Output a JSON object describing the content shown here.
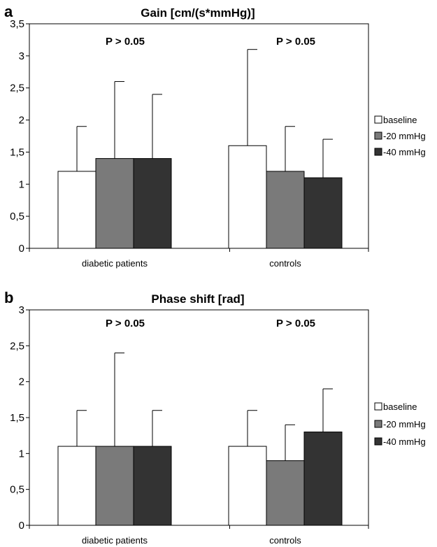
{
  "chart_data": [
    {
      "panel": "a",
      "type": "bar",
      "title": "Gain [cm/(s*mmHg)]",
      "categories": [
        "diabetic patients",
        "controls"
      ],
      "series": [
        {
          "name": "baseline",
          "values": [
            1.2,
            1.6
          ],
          "error_upper": [
            1.9,
            3.1
          ],
          "color": "#ffffff"
        },
        {
          "name": "-20 mmHg",
          "values": [
            1.4,
            1.2
          ],
          "error_upper": [
            2.6,
            1.9
          ],
          "color": "#7a7a7a"
        },
        {
          "name": "-40 mmHg",
          "values": [
            1.4,
            1.1
          ],
          "error_upper": [
            2.4,
            1.7
          ],
          "color": "#333333"
        }
      ],
      "annotations": [
        "P > 0.05",
        "P > 0.05"
      ],
      "ylim": [
        0,
        3.5
      ],
      "yticks": [
        "0",
        "0,5",
        "1",
        "1,5",
        "2",
        "2,5",
        "3",
        "3,5"
      ],
      "legend_position": "right"
    },
    {
      "panel": "b",
      "type": "bar",
      "title": "Phase shift [rad]",
      "categories": [
        "diabetic patients",
        "controls"
      ],
      "series": [
        {
          "name": "baseline",
          "values": [
            1.1,
            1.1
          ],
          "error_upper": [
            1.6,
            1.6
          ],
          "color": "#ffffff"
        },
        {
          "name": "-20 mmHg",
          "values": [
            1.1,
            0.9
          ],
          "error_upper": [
            2.4,
            1.4
          ],
          "color": "#7a7a7a"
        },
        {
          "name": "-40 mmHg",
          "values": [
            1.1,
            1.3
          ],
          "error_upper": [
            1.6,
            1.9
          ],
          "color": "#333333"
        }
      ],
      "annotations": [
        "P > 0.05",
        "P > 0.05"
      ],
      "ylim": [
        0,
        3
      ],
      "yticks": [
        "0",
        "0,5",
        "1",
        "1,5",
        "2",
        "2,5",
        "3"
      ],
      "legend_position": "right"
    }
  ]
}
